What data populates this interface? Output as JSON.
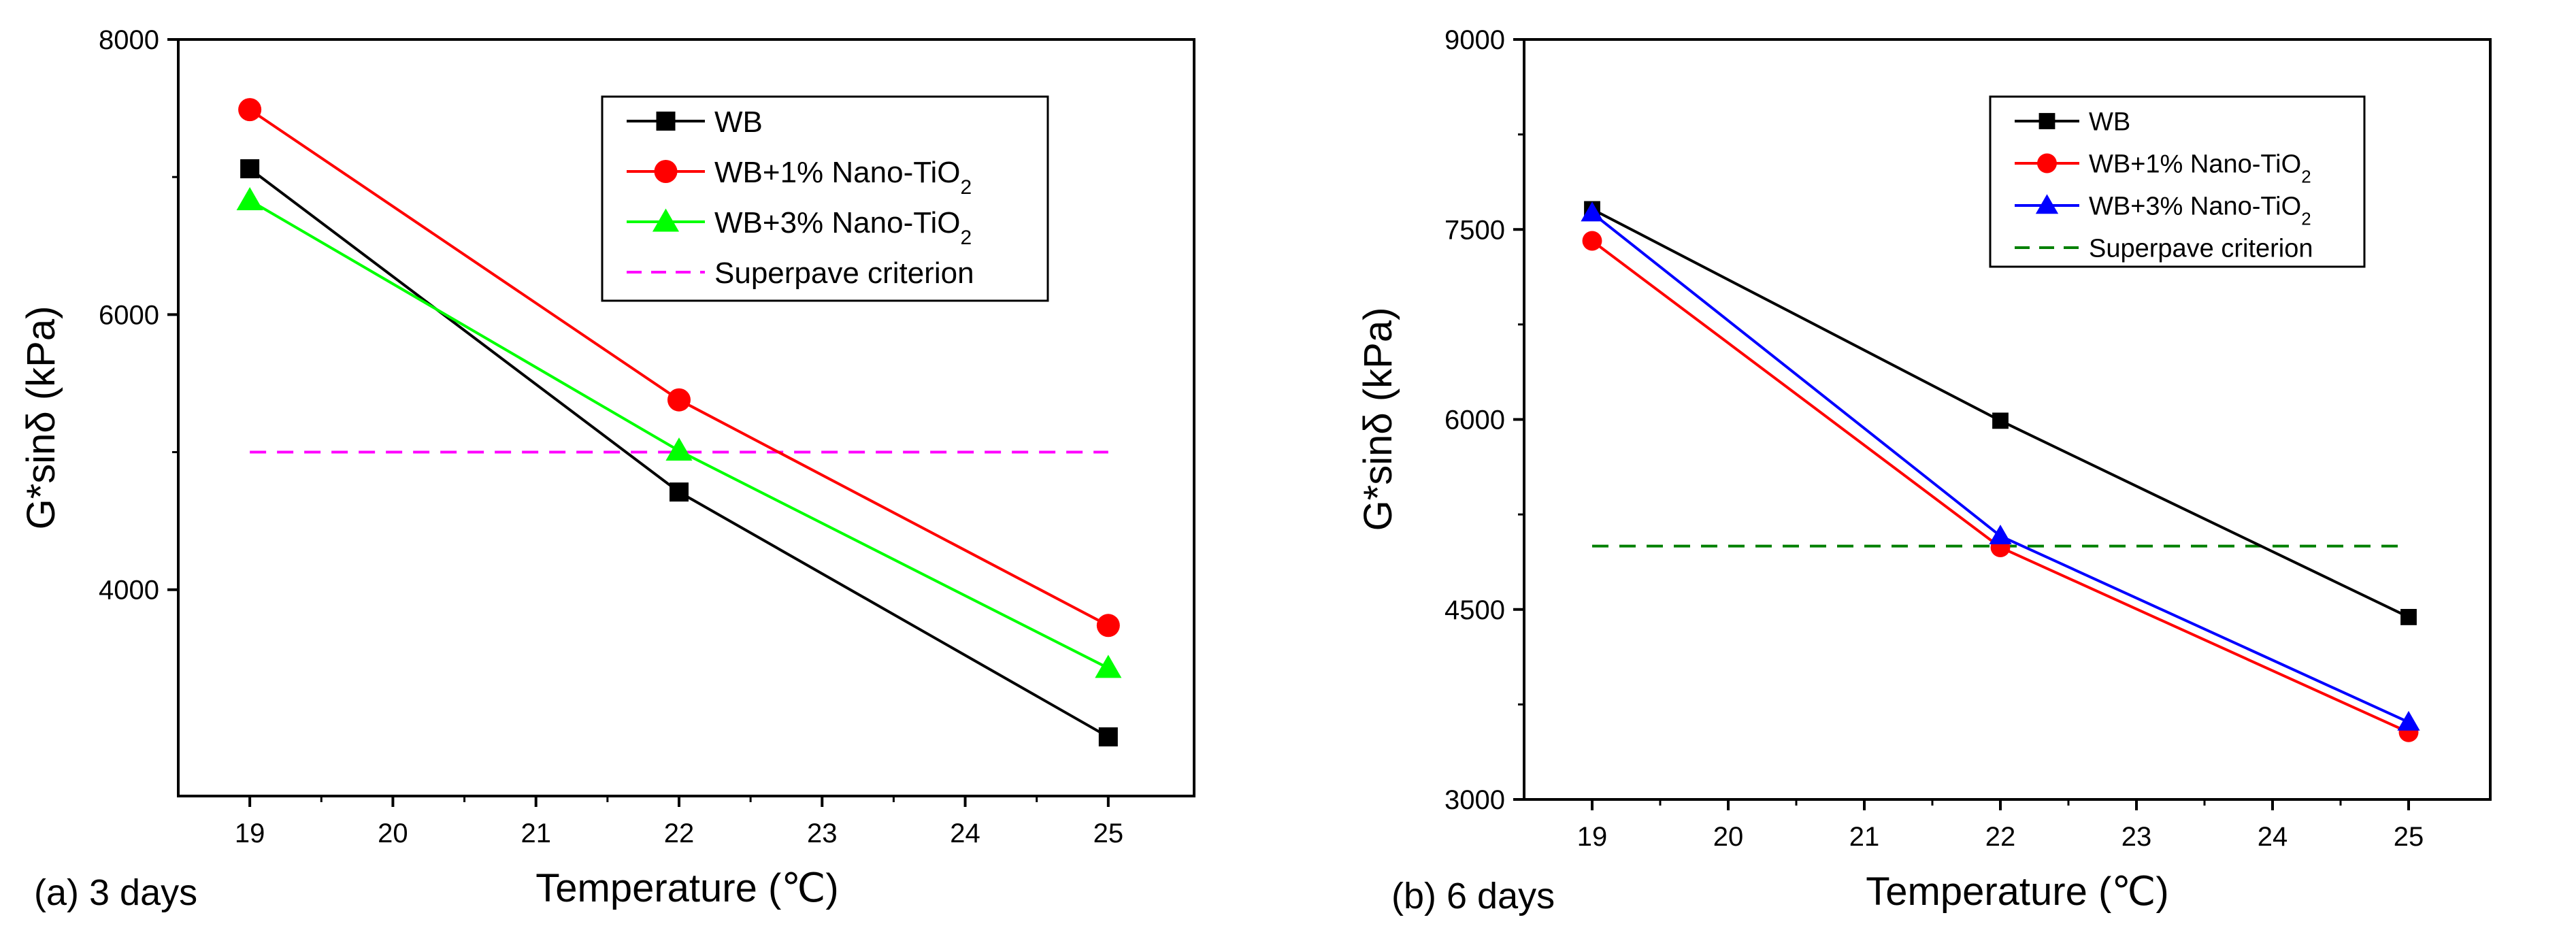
{
  "chart_data": [
    {
      "type": "line",
      "caption": "(a) 3 days",
      "xlabel": "Temperature (℃)",
      "ylabel": "G*sinδ (kPa)",
      "xlim": [
        18.5,
        25.6
      ],
      "ylim": [
        2500,
        8000
      ],
      "xticks": [
        19,
        20,
        21,
        22,
        23,
        24,
        25
      ],
      "yticks": [
        4000,
        6000,
        8000
      ],
      "legend_position": "top-right",
      "series": [
        {
          "name": "WB",
          "x": [
            19,
            22,
            25
          ],
          "values": [
            7060,
            4710,
            2930
          ],
          "color": "#000000",
          "marker": "square"
        },
        {
          "name": "WB+1% Nano-TiO",
          "subscript": "2",
          "x": [
            19,
            22,
            25
          ],
          "values": [
            7490,
            5380,
            3740
          ],
          "color": "#ff0000",
          "marker": "circle"
        },
        {
          "name": "WB+3% Nano-TiO",
          "subscript": "2",
          "x": [
            19,
            22,
            25
          ],
          "values": [
            6830,
            5010,
            3430
          ],
          "color": "#00ff00",
          "marker": "triangle"
        }
      ],
      "reference_line": {
        "name": "Superpave criterion",
        "value": 5000,
        "x": [
          19,
          25
        ],
        "color": "#ff00ff",
        "style": "dashed"
      }
    },
    {
      "type": "line",
      "caption": "(b) 6 days",
      "xlabel": "Temperature (℃)",
      "ylabel": "G*sinδ (kPa)",
      "xlim": [
        18.5,
        25.6
      ],
      "ylim": [
        3000,
        9000
      ],
      "xticks": [
        19,
        20,
        21,
        22,
        23,
        24,
        25
      ],
      "yticks": [
        3000,
        4500,
        6000,
        7500,
        9000
      ],
      "legend_position": "top-right",
      "series": [
        {
          "name": "WB",
          "x": [
            19,
            22,
            25
          ],
          "values": [
            7660,
            5990,
            4440
          ],
          "color": "#000000",
          "marker": "square"
        },
        {
          "name": "WB+1% Nano-TiO",
          "subscript": "2",
          "x": [
            19,
            22,
            25
          ],
          "values": [
            7410,
            4990,
            3530
          ],
          "color": "#ff0000",
          "marker": "circle"
        },
        {
          "name": "WB+3% Nano-TiO",
          "subscript": "2",
          "x": [
            19,
            22,
            25
          ],
          "values": [
            7630,
            5080,
            3610
          ],
          "color": "#0000ff",
          "marker": "triangle"
        }
      ],
      "reference_line": {
        "name": "Superpave criterion",
        "value": 5000,
        "x": [
          19,
          25
        ],
        "color": "#008000",
        "style": "dashed"
      }
    }
  ]
}
